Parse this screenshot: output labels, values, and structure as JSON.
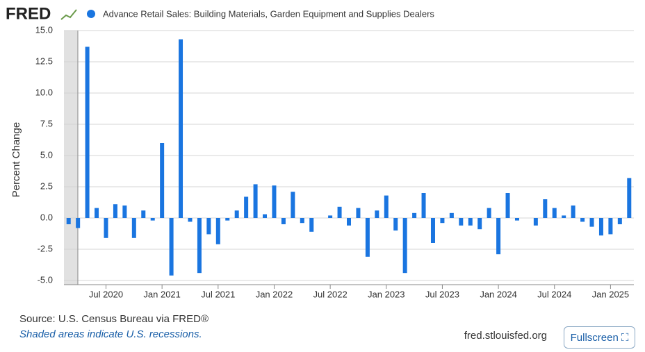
{
  "brand": "FRED",
  "chart_data": {
    "type": "bar",
    "series": [
      {
        "name": "Advance Retail Sales: Building Materials, Garden Equipment and Supplies Dealers",
        "color": "#1a75e0",
        "values": [
          -0.5,
          -0.8,
          13.7,
          0.8,
          -1.6,
          1.1,
          1.0,
          -1.6,
          0.6,
          -0.2,
          6.0,
          -4.6,
          14.3,
          -0.3,
          -4.4,
          -1.3,
          -2.1,
          -0.2,
          0.6,
          1.7,
          2.7,
          0.3,
          2.6,
          -0.5,
          2.1,
          -0.4,
          -1.1,
          0.0,
          0.2,
          0.9,
          -0.6,
          0.8,
          -3.1,
          0.6,
          1.8,
          -1.0,
          -4.4,
          0.4,
          2.0,
          -2.0,
          -0.4,
          0.4,
          -0.6,
          -0.6,
          -0.9,
          0.8,
          -2.9,
          2.0,
          -0.2,
          0.0,
          -0.6,
          1.5,
          0.8,
          0.2,
          1.0,
          -0.3,
          -0.7,
          -1.4,
          -1.3,
          -0.5,
          3.2
        ]
      }
    ],
    "categories": [
      null,
      null,
      null,
      null,
      "Jul 2020",
      null,
      null,
      null,
      null,
      null,
      "Jan 2021",
      null,
      null,
      null,
      null,
      null,
      "Jul 2021",
      null,
      null,
      null,
      null,
      null,
      "Jan 2022",
      null,
      null,
      null,
      null,
      null,
      "Jul 2022",
      null,
      null,
      null,
      null,
      null,
      "Jan 2023",
      null,
      null,
      null,
      null,
      null,
      "Jul 2023",
      null,
      null,
      null,
      null,
      null,
      "Jan 2024",
      null,
      null,
      null,
      null,
      null,
      "Jul 2024",
      null,
      null,
      null,
      null,
      null,
      "Jan 2025",
      null,
      null
    ],
    "y_label": "Percent Change",
    "ylim": [
      -5.0,
      15.0
    ],
    "yticks": [
      {
        "value": -5.0,
        "label": "-5.0"
      },
      {
        "value": -2.5,
        "label": "-2.5"
      },
      {
        "value": 0.0,
        "label": "0.0"
      },
      {
        "value": 2.5,
        "label": "2.5"
      },
      {
        "value": 5.0,
        "label": "5.0"
      },
      {
        "value": 7.5,
        "label": "7.5"
      },
      {
        "value": 10.0,
        "label": "10.0"
      },
      {
        "value": 12.5,
        "label": "12.5"
      },
      {
        "value": 15.0,
        "label": "15.0"
      }
    ],
    "grid": true
  },
  "footer": {
    "source": "Source: U.S. Census Bureau via FRED®",
    "note": "Shaded areas indicate U.S. recessions.",
    "url": "fred.stlouisfed.org",
    "button": "Fullscreen"
  }
}
